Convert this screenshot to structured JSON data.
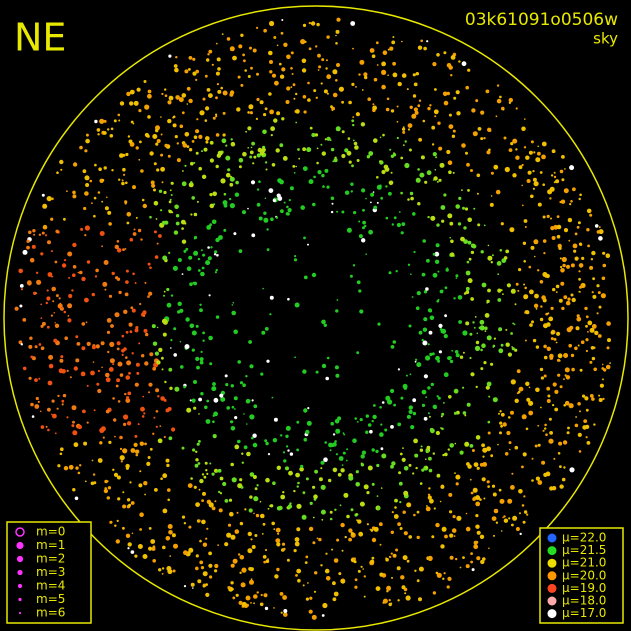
{
  "header": {
    "corner": "NE",
    "frame_id": "03k61091o0506w",
    "subtitle": "sky"
  },
  "legend_magnitude": [
    "m=0",
    "m=1",
    "m=2",
    "m=3",
    "m=4",
    "m=5",
    "m=6"
  ],
  "legend_brightness": [
    "μ=22.0",
    "μ=21.5",
    "μ=21.0",
    "μ=20.0",
    "μ=19.0",
    "μ=18.0",
    "μ=17.0"
  ]
}
